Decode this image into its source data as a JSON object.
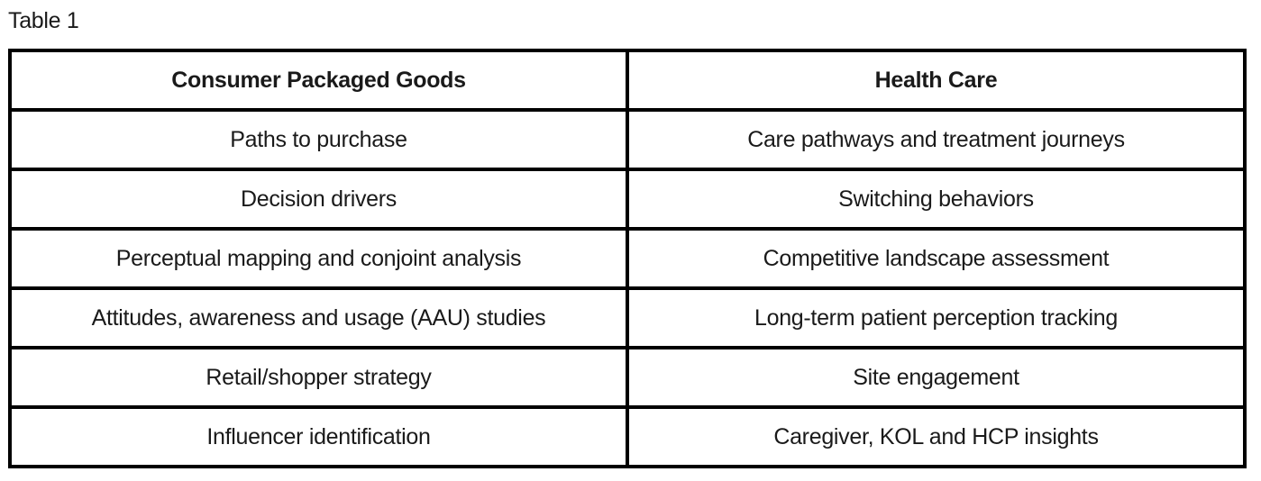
{
  "page": {
    "caption": "Table 1"
  },
  "colors": {
    "border": "#000000",
    "text": "#1a1a1a",
    "background": "#ffffff"
  },
  "table": {
    "columns": [
      {
        "header": "Consumer Packaged Goods"
      },
      {
        "header": "Health Care"
      }
    ],
    "rows": [
      [
        "Paths to purchase",
        "Care pathways and treatment journeys"
      ],
      [
        "Decision drivers",
        "Switching behaviors"
      ],
      [
        "Perceptual mapping and conjoint analysis",
        "Competitive landscape assessment"
      ],
      [
        "Attitudes, awareness and usage (AAU) studies",
        "Long-term patient perception tracking"
      ],
      [
        "Retail/shopper strategy",
        "Site engagement"
      ],
      [
        "Influencer identification",
        "Caregiver, KOL and HCP insights"
      ]
    ]
  }
}
